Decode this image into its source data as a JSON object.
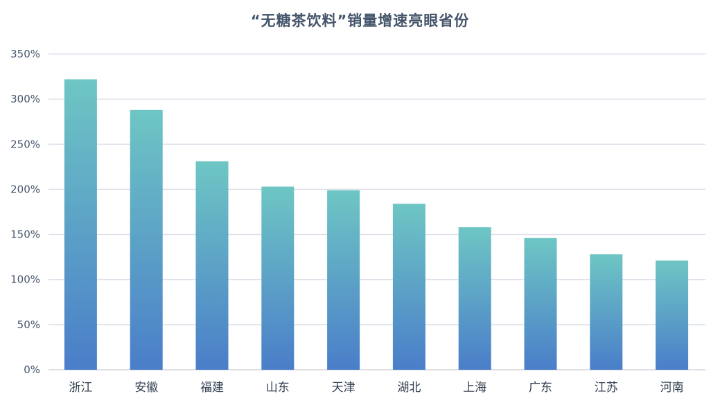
{
  "chart_data": {
    "type": "bar",
    "title": "“无糖茶饮料”销量增速亮眼省份",
    "xlabel": "",
    "ylabel": "",
    "categories": [
      "浙江",
      "安徽",
      "福建",
      "山东",
      "天津",
      "湖北",
      "上海",
      "广东",
      "江苏",
      "河南"
    ],
    "values": [
      322,
      288,
      231,
      203,
      199,
      184,
      158,
      146,
      128,
      121
    ],
    "value_unit": "%",
    "ylim": [
      0,
      350
    ],
    "yticks": [
      "0%",
      "50%",
      "100%",
      "150%",
      "200%",
      "250%",
      "300%",
      "350%"
    ],
    "grid": true,
    "legend": "none",
    "colors": {
      "bar_top": "#6ec6c4",
      "bar_bottom": "#4a7ec9",
      "grid": "#d9dde6",
      "axis": "#c9ced8",
      "text": "#44546a"
    }
  }
}
